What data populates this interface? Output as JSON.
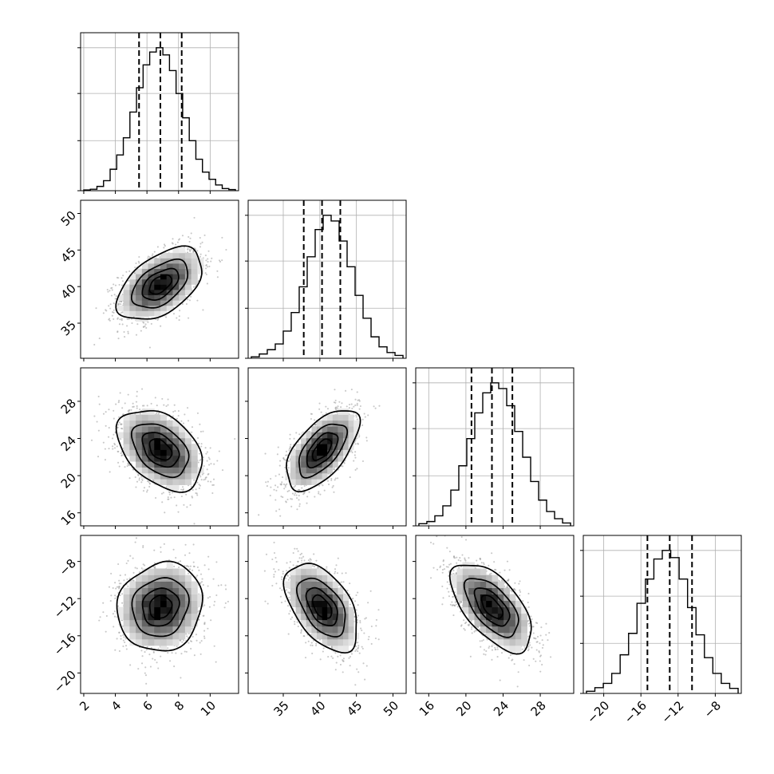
{
  "chart_data": {
    "type": "corner",
    "params": [
      {
        "range": [
          1.8,
          11.8
        ],
        "ticks": [
          2,
          4,
          6,
          8,
          10
        ],
        "tick_labels": [
          "2",
          "4",
          "6",
          "8",
          "10"
        ],
        "mean": 6.85,
        "sd": 1.3,
        "quantiles": [
          5.5,
          6.85,
          8.2
        ]
      },
      {
        "range": [
          30.2,
          51.8
        ],
        "ticks": [
          35,
          40,
          45,
          50
        ],
        "tick_labels": [
          "35",
          "40",
          "45",
          "50"
        ],
        "mean": 40.3,
        "sd": 2.4,
        "quantiles": [
          37.8,
          40.3,
          42.8
        ]
      },
      {
        "range": [
          14.6,
          31.6
        ],
        "ticks": [
          16,
          20,
          24,
          28
        ],
        "tick_labels": [
          "16",
          "20",
          "24",
          "28"
        ],
        "mean": 22.8,
        "sd": 2.1,
        "quantiles": [
          20.6,
          22.8,
          25.0
        ]
      },
      {
        "range": [
          -22.2,
          -5.2
        ],
        "ticks": [
          -20,
          -16,
          -12,
          -8
        ],
        "tick_labels": [
          "−20",
          "−16",
          "−12",
          "−8"
        ],
        "mean": -12.9,
        "sd": 2.3,
        "quantiles": [
          -15.3,
          -12.9,
          -10.5
        ]
      }
    ],
    "correlations": [
      [
        1,
        0.5,
        -0.4,
        0.1
      ],
      [
        0.5,
        1,
        0.6,
        -0.5
      ],
      [
        -0.4,
        0.6,
        1,
        -0.6
      ],
      [
        0.1,
        -0.5,
        -0.6,
        1
      ]
    ],
    "histograms": [
      [
        0.005,
        0.01,
        0.03,
        0.07,
        0.15,
        0.25,
        0.37,
        0.55,
        0.72,
        0.88,
        0.97,
        1.0,
        0.95,
        0.84,
        0.68,
        0.51,
        0.35,
        0.22,
        0.13,
        0.08,
        0.04,
        0.015,
        0.008
      ],
      [
        0.01,
        0.03,
        0.06,
        0.1,
        0.19,
        0.32,
        0.5,
        0.71,
        0.9,
        1.0,
        0.96,
        0.82,
        0.64,
        0.44,
        0.28,
        0.15,
        0.08,
        0.04,
        0.02
      ],
      [
        0.015,
        0.03,
        0.07,
        0.14,
        0.25,
        0.42,
        0.61,
        0.79,
        0.93,
        1.0,
        0.96,
        0.84,
        0.66,
        0.48,
        0.31,
        0.18,
        0.1,
        0.05,
        0.02
      ],
      [
        0.015,
        0.04,
        0.07,
        0.14,
        0.27,
        0.42,
        0.63,
        0.8,
        0.94,
        1.0,
        0.95,
        0.8,
        0.6,
        0.41,
        0.25,
        0.14,
        0.07,
        0.035
      ]
    ],
    "contour_levels_sigma": [
      0.5,
      1.0,
      1.5,
      2.0
    ],
    "grid": true,
    "colors": {
      "line": "#000000",
      "points": "#9a9a9a",
      "grid": "#b0b0b0"
    }
  }
}
